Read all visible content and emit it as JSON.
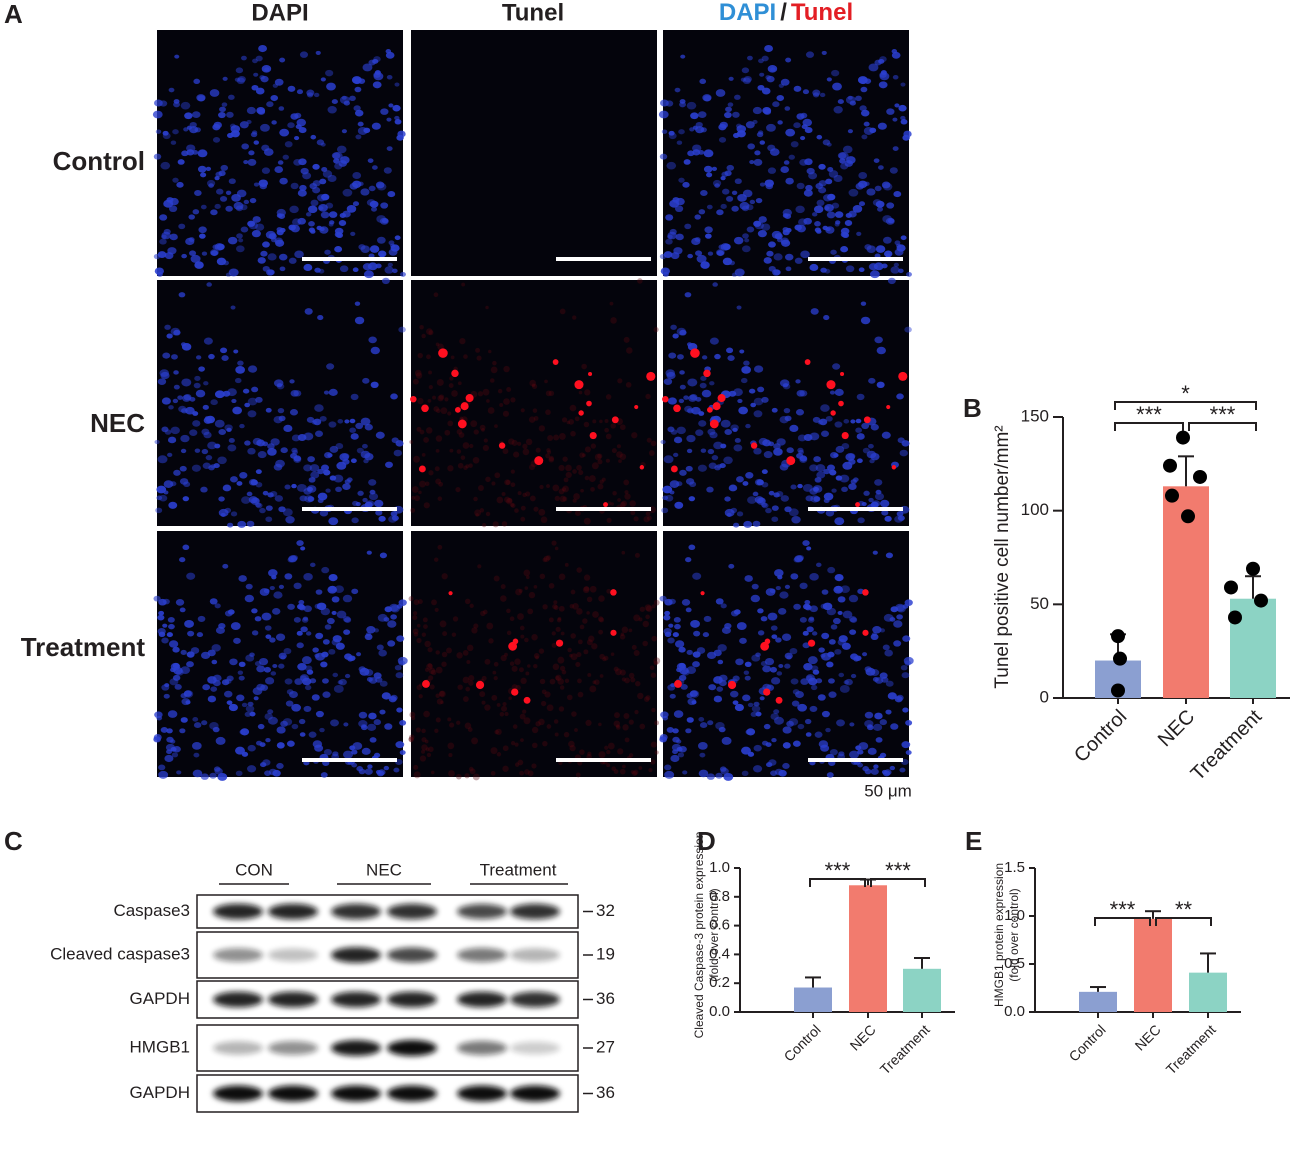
{
  "figure_a": {
    "label": "A",
    "columns": [
      "DAPI",
      "Tunel"
    ],
    "merged": [
      "DAPI",
      "/",
      "Tunel"
    ],
    "rows": [
      "Control",
      "NEC",
      "Treatment"
    ],
    "scale": "50 μm"
  },
  "figure_c": {
    "label": "C",
    "groups": [
      "CON",
      "NEC",
      "Treatment"
    ],
    "rows": [
      {
        "name": "Caspase3",
        "kda": "32"
      },
      {
        "name": "Cleaved caspase3",
        "kda": "19"
      },
      {
        "name": "GAPDH",
        "kda": "36"
      },
      {
        "name": "HMGB1",
        "kda": "27"
      },
      {
        "name": "GAPDH",
        "kda": "36"
      }
    ]
  },
  "chart_data": [
    {
      "type": "bar",
      "panel": "B",
      "y_label": "Tunel positive cell number/mm²",
      "categories": [
        "Control",
        "NEC",
        "Treatment"
      ],
      "values": [
        20,
        113,
        53
      ],
      "errors": [
        14,
        16,
        12
      ],
      "points": [
        [
          33,
          21,
          4
        ],
        [
          139,
          124,
          118,
          108,
          97
        ],
        [
          69,
          59,
          52,
          43
        ]
      ],
      "colors": [
        "#8b9fd1",
        "#f27b6e",
        "#8cd3c4"
      ],
      "ylim": [
        0,
        150
      ],
      "yticks": [
        0,
        50,
        100,
        150
      ],
      "annotations": [
        {
          "text": "*",
          "between": [
            "Control",
            "Treatment"
          ]
        },
        {
          "text": "***",
          "between": [
            "Control",
            "NEC"
          ]
        },
        {
          "text": "***",
          "between": [
            "NEC",
            "Treatment"
          ]
        }
      ]
    },
    {
      "type": "bar",
      "panel": "D",
      "y_label": [
        "Cleaved Caspase-3 protein expression",
        "(fold over control)"
      ],
      "categories": [
        "Control",
        "NEC",
        "Treatment"
      ],
      "values": [
        0.17,
        0.88,
        0.3
      ],
      "errors": [
        0.07,
        0.04,
        0.075
      ],
      "colors": [
        "#8b9fd1",
        "#f27b6e",
        "#8cd3c4"
      ],
      "ylim": [
        0,
        1.0
      ],
      "yticks": [
        {
          "value": 0,
          "label": "0.0"
        },
        0.2,
        0.4,
        0.6,
        0.8,
        {
          "value": 1,
          "label": "1.0"
        }
      ],
      "annotations": [
        {
          "text": "***",
          "between": [
            "Control",
            "NEC"
          ]
        },
        {
          "text": "***",
          "between": [
            "NEC",
            "Treatment"
          ]
        }
      ]
    },
    {
      "type": "bar",
      "panel": "E",
      "y_label": [
        "HMGB1 protein expression",
        "(fold over control)"
      ],
      "categories": [
        "Control",
        "NEC",
        "Treatment"
      ],
      "values": [
        0.21,
        0.97,
        0.41
      ],
      "errors": [
        0.05,
        0.08,
        0.2
      ],
      "colors": [
        "#8b9fd1",
        "#f27b6e",
        "#8cd3c4"
      ],
      "ylim": [
        0,
        1.5
      ],
      "yticks": [
        {
          "value": 0,
          "label": "0.0"
        },
        0.5,
        {
          "value": 1,
          "label": "1.0"
        },
        1.5
      ],
      "annotations": [
        {
          "text": "***",
          "between": [
            "Control",
            "NEC"
          ]
        },
        {
          "text": "**",
          "between": [
            "NEC",
            "Treatment"
          ]
        }
      ]
    }
  ]
}
